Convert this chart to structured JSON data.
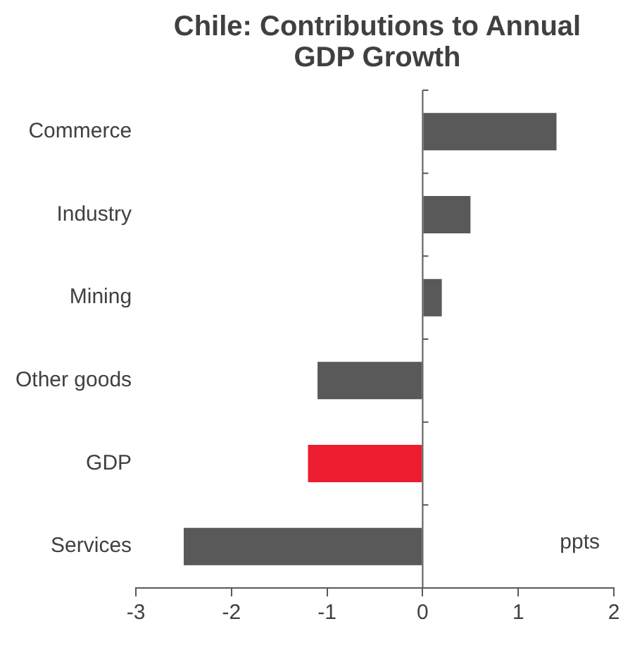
{
  "chart_data": {
    "type": "bar",
    "orientation": "horizontal",
    "title": "Chile: Contributions to Annual GDP Growth",
    "categories": [
      "Commerce",
      "Industry",
      "Mining",
      "Other goods",
      "GDP",
      "Services"
    ],
    "values": [
      1.4,
      0.5,
      0.2,
      -1.1,
      -1.2,
      -2.5
    ],
    "colors": [
      "#595959",
      "#595959",
      "#595959",
      "#595959",
      "#ed1c2e",
      "#595959"
    ],
    "xlim": [
      -3,
      2
    ],
    "xticks": [
      -3,
      -2,
      -1,
      0,
      1,
      2
    ],
    "legend": false,
    "annotations": [
      "ppts"
    ]
  }
}
